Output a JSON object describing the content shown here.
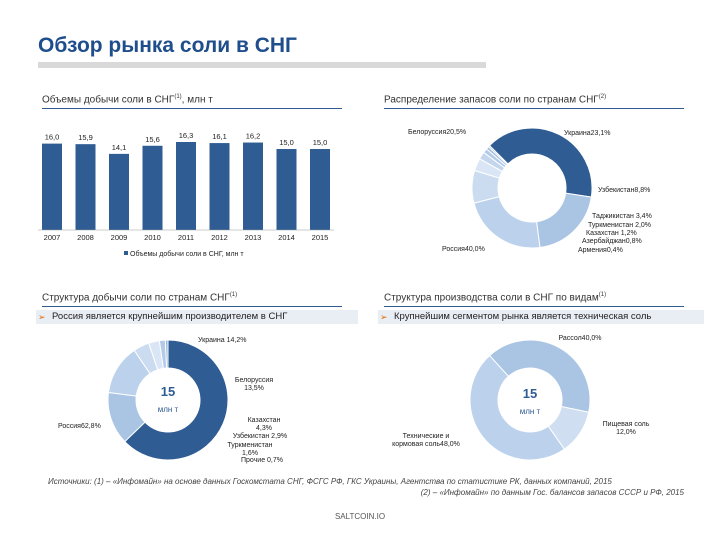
{
  "title": "Обзор рынка соли в СНГ",
  "bar_section": {
    "header_main": "Объемы добычи соли в СНГ",
    "header_sup": "(1)",
    "header_unit": ", млн т"
  },
  "reserves_section": {
    "header_main": "Распределение запасов соли по странам СНГ",
    "header_sup": "(2)"
  },
  "production_section": {
    "header_main": "Структура добычи соли по странам СНГ",
    "header_sup": "(1)",
    "bullet": "Россия является крупнейшим производителем в СНГ",
    "center_value": "15",
    "center_unit": "млн т"
  },
  "type_section": {
    "header_main": "Структура производства соли в СНГ по видам",
    "header_sup": "(1)",
    "bullet": "Крупнейшим сегментом рынка является техническая соль",
    "center_value": "15",
    "center_unit": "млн т"
  },
  "chart_data": [
    {
      "type": "bar",
      "categories": [
        "2007",
        "2008",
        "2009",
        "2010",
        "2011",
        "2012",
        "2013",
        "2014",
        "2015"
      ],
      "series": [
        {
          "name": "Объемы добычи соли в СНГ, млн т",
          "values": [
            16.0,
            15.9,
            14.1,
            15.6,
            16.3,
            16.1,
            16.2,
            15.0,
            15.0
          ]
        }
      ],
      "value_labels": [
        "16,0",
        "15,9",
        "14,1",
        "15,6",
        "16,3",
        "16,1",
        "16,2",
        "15,0",
        "15,0"
      ],
      "legend": "Объемы добычи соли в СНГ, млн т",
      "color": "#2e5c93"
    },
    {
      "type": "pie",
      "slices": [
        {
          "label": "Россия",
          "value": 40.0,
          "text": "Россия40,0%",
          "color": "#2e5c93"
        },
        {
          "label": "Белоруссия",
          "value": 20.5,
          "text": "Белоруссия20,5%",
          "color": "#aac4e3"
        },
        {
          "label": "Украина",
          "value": 23.1,
          "text": "Украина23,1%",
          "color": "#bcd2ec"
        },
        {
          "label": "Узбекистан",
          "value": 8.8,
          "text": "Узбекистан8,8%",
          "color": "#cbdcf0"
        },
        {
          "label": "Таджикистан",
          "value": 3.4,
          "text": "Таджикистан 3,4%",
          "color": "#dae6f5"
        },
        {
          "label": "Туркменистан",
          "value": 2.0,
          "text": "Туркменистан 2,0%",
          "color": "#c3d6ee"
        },
        {
          "label": "Казахстан",
          "value": 1.2,
          "text": "Казахстан 1,2%",
          "color": "#b3cbe8"
        },
        {
          "label": "Азербайджан",
          "value": 0.8,
          "text": "Азербайджан0,8%",
          "color": "#a4c0e2"
        },
        {
          "label": "Армения",
          "value": 0.4,
          "text": "Армения0,4%",
          "color": "#95b6dd"
        }
      ]
    },
    {
      "type": "pie",
      "slices": [
        {
          "label": "Россия",
          "value": 62.8,
          "text": "Россия62,8%",
          "color": "#2e5c93"
        },
        {
          "label": "Украина",
          "value": 14.2,
          "text": "Украина 14,2%",
          "color": "#aac4e3"
        },
        {
          "label": "Белоруссия",
          "value": 13.5,
          "text": "Белоруссия 13,5%",
          "color": "#bcd2ec"
        },
        {
          "label": "Казахстан",
          "value": 4.3,
          "text": "Казахстан 4,3%",
          "color": "#cbdcf0"
        },
        {
          "label": "Узбекистан",
          "value": 2.9,
          "text": "Узбекистан 2,9%",
          "color": "#dae6f5"
        },
        {
          "label": "Туркменистан",
          "value": 1.6,
          "text": "Туркменистан 1,6%",
          "color": "#b3cbe8"
        },
        {
          "label": "Прочие",
          "value": 0.7,
          "text": "Прочие 0,7%",
          "color": "#95b6dd"
        }
      ]
    },
    {
      "type": "pie",
      "slices": [
        {
          "label": "Техническая и кормовая соль",
          "value": 48.0,
          "text": "Техническая и кормовая соль 48,0%",
          "color": "#bcd2ec"
        },
        {
          "label": "Рассол",
          "value": 40.0,
          "text": "Рассол 40,0%",
          "color": "#aac4e3"
        },
        {
          "label": "Пищевая соль",
          "value": 12.0,
          "text": "Пищевая соль 12,0%",
          "color": "#cfdff1"
        }
      ]
    }
  ],
  "sources": {
    "line1": "Источники: (1) – «Инфомайн» на основе данных Госкомстата СНГ, ФСГС РФ, ГКС Украины, Агентства по статистике РК, данных компаний, 2015",
    "line2": "(2) – «Инфомайн» по данным Гос. балансов запасов СССР и РФ, 2015"
  },
  "footer": "SALTCOIN.IO"
}
